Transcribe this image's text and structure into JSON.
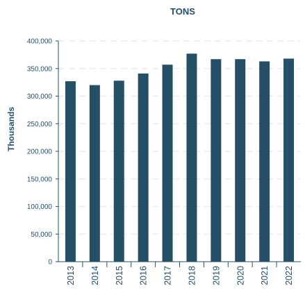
{
  "chart_data": {
    "type": "bar",
    "title": "TONS",
    "ylabel": "Thousands",
    "xlabel": "",
    "categories": [
      "2013",
      "2014",
      "2015",
      "2016",
      "2017",
      "2018",
      "2019",
      "2020",
      "2021",
      "2022"
    ],
    "values": [
      327000,
      320000,
      328000,
      341000,
      357000,
      377000,
      367000,
      367000,
      363000,
      368000
    ],
    "ylim": [
      0,
      400000
    ],
    "yticks": [
      "0",
      "50,000",
      "100,000",
      "150,000",
      "200,000",
      "250,000",
      "300,000",
      "350,000",
      "400,000"
    ],
    "ytick_values": [
      0,
      50000,
      100000,
      150000,
      200000,
      250000,
      300000,
      350000,
      400000
    ],
    "grid": true,
    "legend": "none",
    "colors": {
      "bar": "#244f66",
      "text": "#244f66",
      "axis": "#244f66",
      "grid": "#e6e8ea",
      "background": "#ffffff"
    }
  }
}
